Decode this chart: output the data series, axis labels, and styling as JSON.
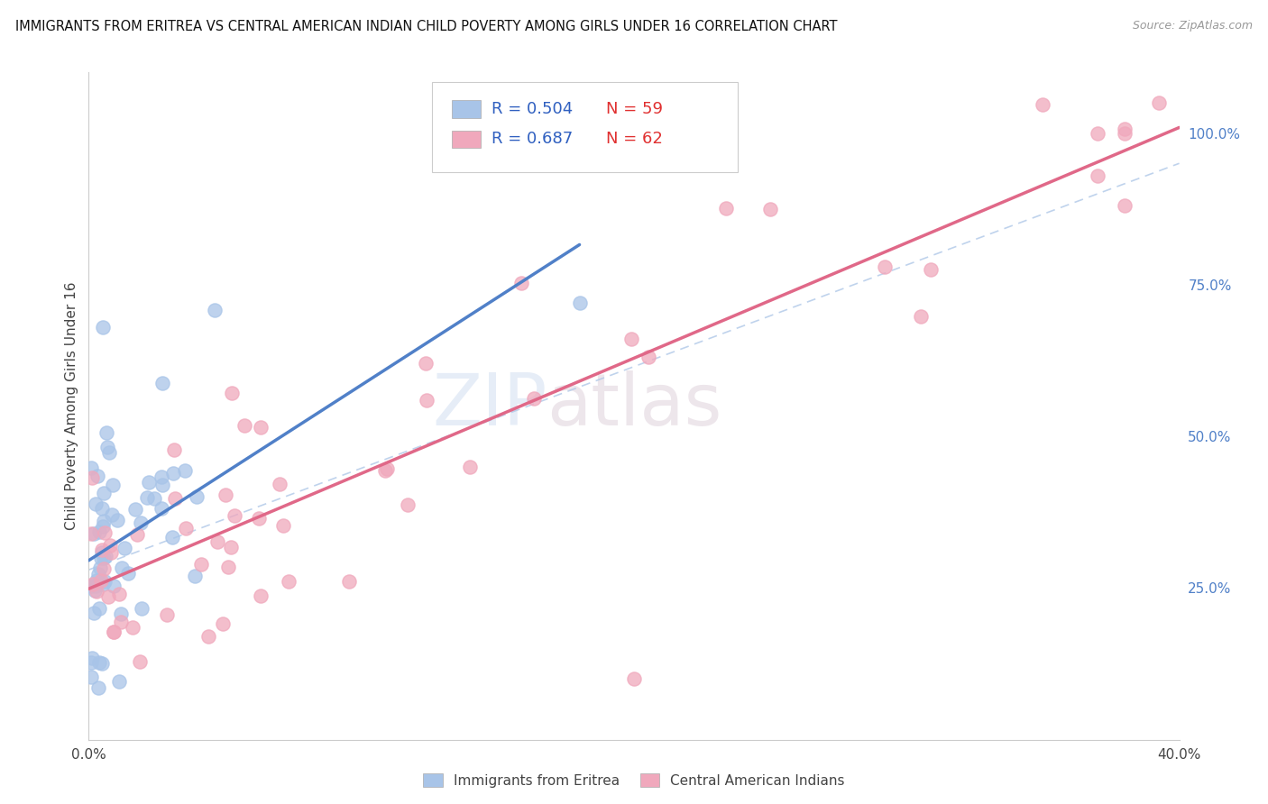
{
  "title": "IMMIGRANTS FROM ERITREA VS CENTRAL AMERICAN INDIAN CHILD POVERTY AMONG GIRLS UNDER 16 CORRELATION CHART",
  "source": "Source: ZipAtlas.com",
  "ylabel": "Child Poverty Among Girls Under 16",
  "xlim": [
    0.0,
    0.4
  ],
  "ylim": [
    0.0,
    1.1
  ],
  "blue_R": 0.504,
  "blue_N": 59,
  "pink_R": 0.687,
  "pink_N": 62,
  "blue_face_color": "#a8c4e8",
  "pink_face_color": "#f0a8bc",
  "blue_line_color": "#5080c8",
  "pink_line_color": "#e06888",
  "right_tick_color": "#5080c8",
  "legend_label_blue": "Immigrants from Eritrea",
  "legend_label_pink": "Central American Indians"
}
